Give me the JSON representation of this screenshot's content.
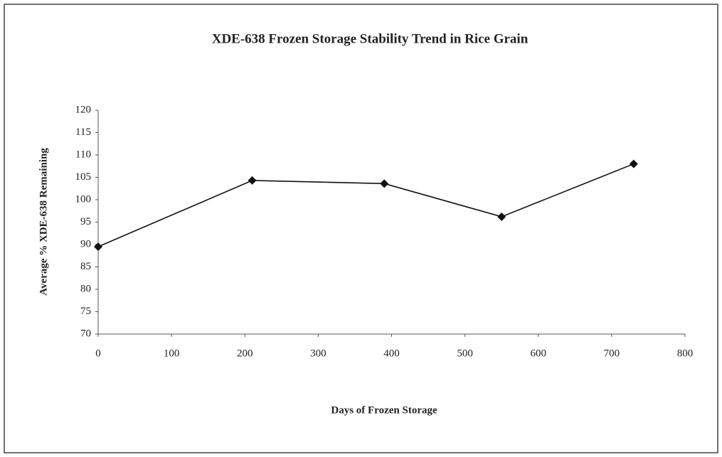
{
  "chart_data": {
    "type": "line",
    "title": "XDE-638 Frozen Storage Stability Trend in Rice Grain",
    "x_label": "Days of Frozen Storage",
    "y_label": "Average % XDE-638 Remaining",
    "x": [
      0,
      210,
      390,
      550,
      730
    ],
    "series": [
      {
        "name": "XDE-638",
        "color": "#111111",
        "values": [
          89.5,
          104.3,
          103.6,
          96.2,
          108
        ]
      }
    ],
    "xlim": [
      0,
      800
    ],
    "xticks": [
      0,
      100,
      200,
      300,
      400,
      500,
      600,
      700,
      800
    ],
    "ylim": [
      70,
      120
    ],
    "yticks": [
      70,
      75,
      80,
      85,
      90,
      95,
      100,
      105,
      110,
      115,
      120
    ],
    "grid": false
  }
}
